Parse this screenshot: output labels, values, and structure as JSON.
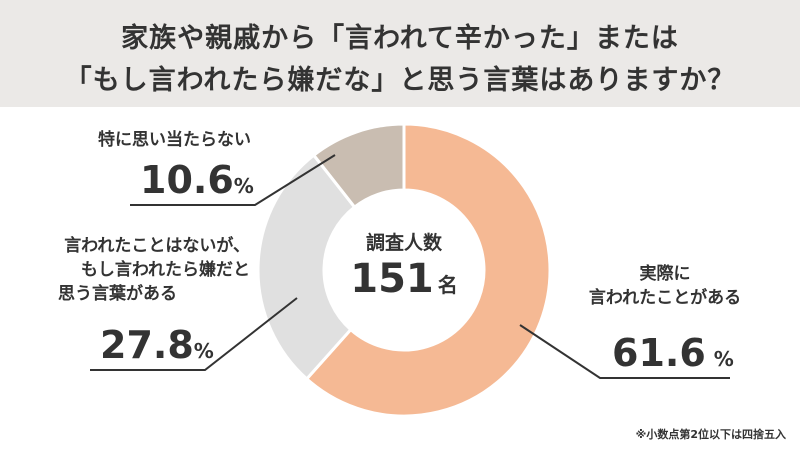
{
  "title_line1": "家族や親戚から「言われて辛かった」または",
  "title_line2": "「もし言われたら嫌だな」と思う言葉はありますか？",
  "center": {
    "label": "調査人数",
    "value": "151",
    "unit": "名"
  },
  "footnote": "※小数点第2位以下は四捨五入",
  "chart_data": {
    "type": "pie",
    "donut": true,
    "title": "家族や親戚から「言われて辛かった」または「もし言われたら嫌だな」と思う言葉はありますか？",
    "unit": "%",
    "slices": [
      {
        "label_lines": [
          "実際に",
          "言われたことがある"
        ],
        "value": 61.6,
        "value_text": "61.6",
        "color": "#f5b994"
      },
      {
        "label_lines": [
          "言われたことはないが、",
          "もし言われたら嫌だと",
          "思う言葉がある"
        ],
        "value": 27.8,
        "value_text": "27.8",
        "color": "#e0e0e0"
      },
      {
        "label_lines": [
          "特に思い当たらない"
        ],
        "value": 10.6,
        "value_text": "10.6",
        "color": "#c9bdb1"
      }
    ],
    "start": "top",
    "direction": "clockwise"
  }
}
